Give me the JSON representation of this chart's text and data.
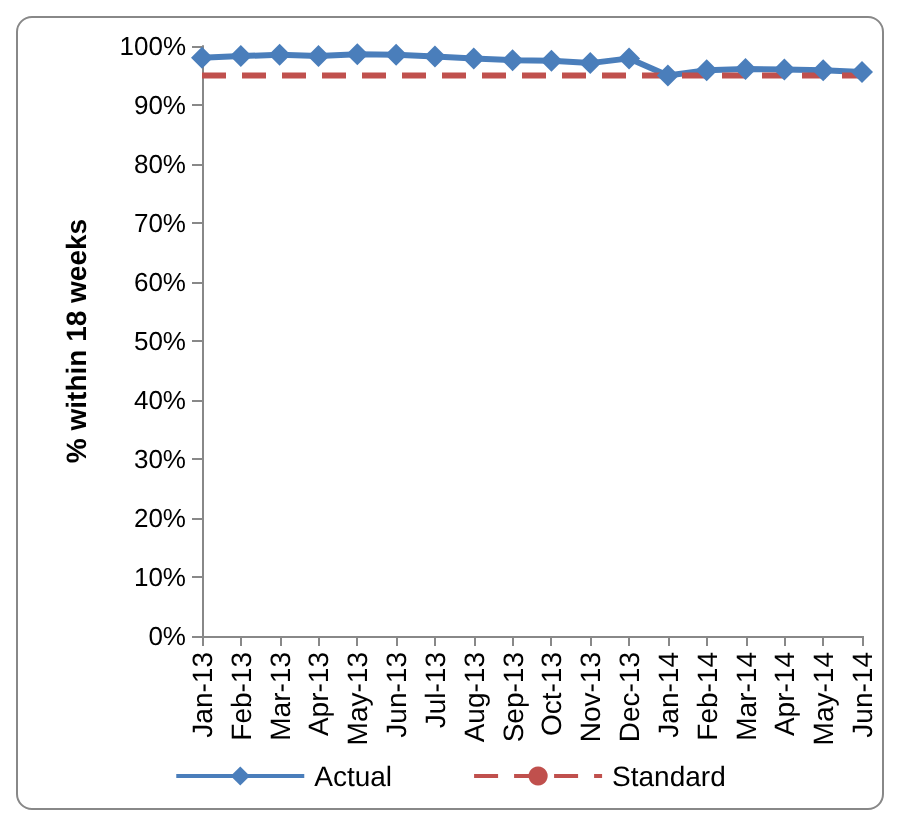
{
  "chart_data": {
    "type": "line",
    "ylabel": "% within 18 weeks",
    "categories": [
      "Jan-13",
      "Feb-13",
      "Mar-13",
      "Apr-13",
      "May-13",
      "Jun-13",
      "Jul-13",
      "Aug-13",
      "Sep-13",
      "Oct-13",
      "Nov-13",
      "Dec-13",
      "Jan-14",
      "Feb-14",
      "Mar-14",
      "Apr-14",
      "May-14",
      "Jun-14"
    ],
    "series": [
      {
        "name": "Actual",
        "color": "#4a7ebb",
        "marker": "diamond",
        "line_style": "solid",
        "values": [
          98.0,
          98.3,
          98.5,
          98.3,
          98.6,
          98.5,
          98.2,
          97.9,
          97.6,
          97.5,
          97.1,
          97.9,
          95.0,
          95.9,
          96.1,
          96.0,
          95.9,
          95.6
        ]
      },
      {
        "name": "Standard",
        "color": "#c0504d",
        "marker": "none",
        "line_style": "dashed",
        "values": [
          95,
          95,
          95,
          95,
          95,
          95,
          95,
          95,
          95,
          95,
          95,
          95,
          95,
          95,
          95,
          95,
          95,
          95
        ]
      }
    ],
    "ylim": [
      0,
      100
    ],
    "yticks": [
      {
        "value": 0,
        "label": "0%"
      },
      {
        "value": 10,
        "label": "10%"
      },
      {
        "value": 20,
        "label": "20%"
      },
      {
        "value": 30,
        "label": "30%"
      },
      {
        "value": 40,
        "label": "40%"
      },
      {
        "value": 50,
        "label": "50%"
      },
      {
        "value": 60,
        "label": "60%"
      },
      {
        "value": 70,
        "label": "70%"
      },
      {
        "value": 80,
        "label": "80%"
      },
      {
        "value": 90,
        "label": "90%"
      },
      {
        "value": 100,
        "label": "100%"
      }
    ],
    "grid": false,
    "legend": "bottom"
  }
}
